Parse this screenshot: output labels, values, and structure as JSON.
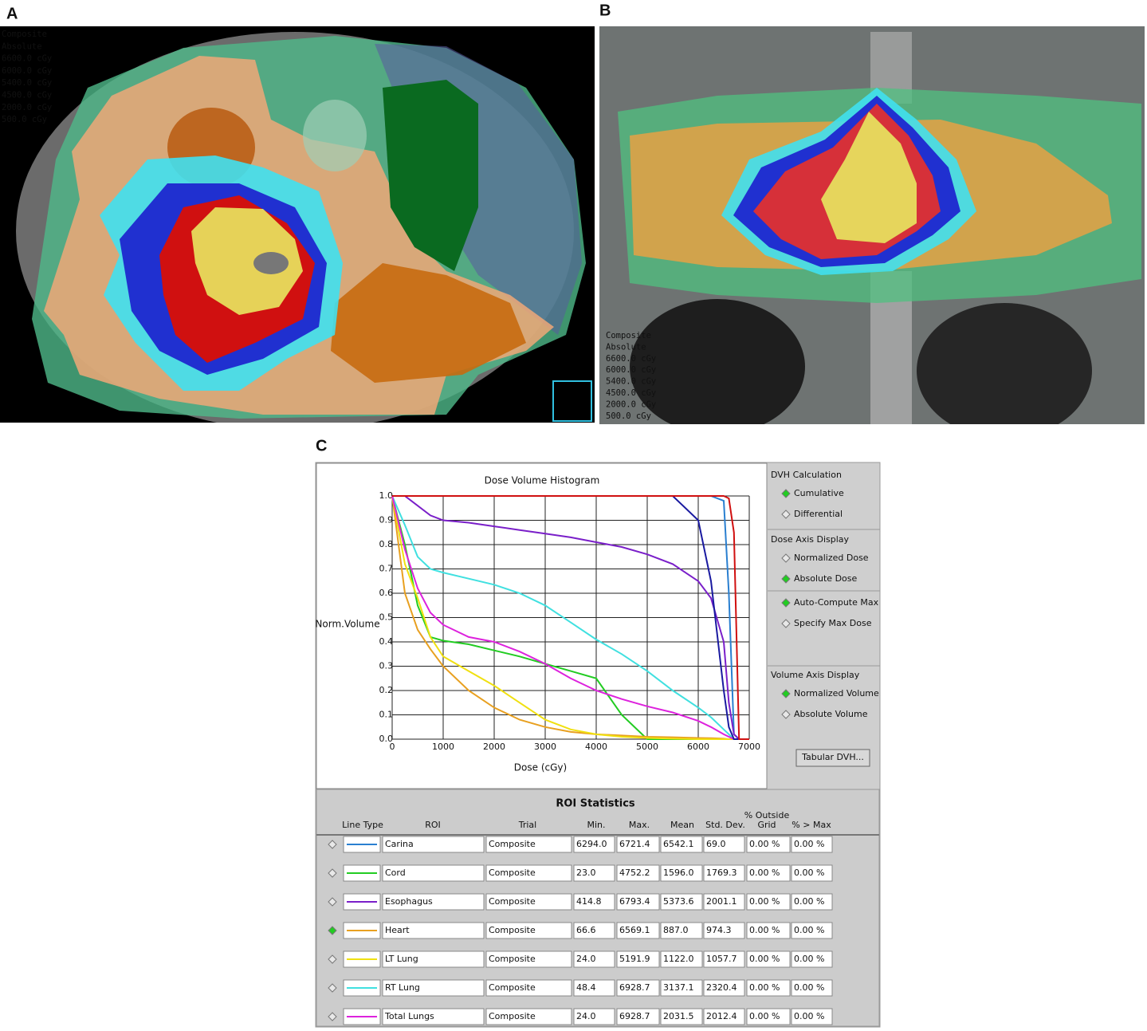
{
  "panel_labels": [
    "A",
    "B",
    "C"
  ],
  "image_a": {
    "legend": [
      {
        "text": "Composite",
        "color": "#ffffff"
      },
      {
        "text": "Absolute",
        "color": "#ffffff"
      },
      {
        "text": "6600.0 cGy",
        "color": "#f0f060"
      },
      {
        "text": "6000.0 cGy",
        "color": "#ff2020"
      },
      {
        "text": "5400.0 cGy",
        "color": "#3050ff"
      },
      {
        "text": "4500.0 cGy",
        "color": "#40e0f0"
      },
      {
        "text": "2000.0 cGy",
        "color": "#f09050"
      },
      {
        "text": "500.0 cGy",
        "color": "#40a060"
      }
    ]
  },
  "image_b": {
    "legend": [
      {
        "text": "Composite",
        "color": "#ffffff"
      },
      {
        "text": "Absolute",
        "color": "#ffffff"
      },
      {
        "text": "6600.0 cGy",
        "color": "#f0f060"
      },
      {
        "text": "6000.0 cGy",
        "color": "#ff2020"
      },
      {
        "text": "5400.0 cGy",
        "color": "#3050ff"
      },
      {
        "text": "4500.0 cGy",
        "color": "#40e0f0"
      },
      {
        "text": "2000.0 cGy",
        "color": "#f09050"
      },
      {
        "text": "500.0 cGy",
        "color": "#40a060"
      }
    ]
  },
  "chart_data": {
    "type": "line",
    "title": "Dose Volume Histogram",
    "x_label": "Dose (cGy)",
    "y_label": "Norm.Volume",
    "x": [
      0,
      250,
      500,
      750,
      1000,
      1500,
      2000,
      2500,
      3000,
      3500,
      4000,
      4500,
      5000,
      5500,
      6000,
      6250,
      6500,
      6600,
      6700,
      6800,
      7000
    ],
    "xlim": [
      0,
      7000
    ],
    "xticks": [
      0,
      1000,
      2000,
      3000,
      4000,
      5000,
      6000,
      7000
    ],
    "ylim": [
      0,
      1
    ],
    "yticks": [
      {
        "value": 0,
        "label": "0.0"
      },
      0.1,
      0.2,
      0.3,
      0.4,
      0.5,
      0.6,
      0.7,
      0.8,
      0.9,
      {
        "value": 1,
        "label": "1.0"
      }
    ],
    "grid": true,
    "series": [
      {
        "color": "#2a7fd0",
        "values": [
          1,
          1,
          1,
          1,
          1,
          1,
          1,
          1,
          1,
          1,
          1,
          1,
          1,
          1,
          1,
          1,
          0.98,
          0.6,
          0.02,
          0,
          0
        ]
      },
      {
        "color": "#22cc22",
        "values": [
          1,
          0.8,
          0.55,
          0.42,
          0.405,
          0.39,
          0.365,
          0.34,
          0.31,
          0.28,
          0.25,
          0.1,
          0,
          0,
          0,
          0,
          0,
          0,
          0,
          0,
          0
        ]
      },
      {
        "color": "#7a1fc9",
        "values": [
          1,
          1,
          0.96,
          0.92,
          0.9,
          0.89,
          0.875,
          0.86,
          0.845,
          0.83,
          0.81,
          0.79,
          0.76,
          0.72,
          0.65,
          0.58,
          0.4,
          0.15,
          0.02,
          0,
          0
        ]
      },
      {
        "color": "#e8a020",
        "values": [
          1,
          0.6,
          0.45,
          0.37,
          0.3,
          0.2,
          0.13,
          0.08,
          0.05,
          0.03,
          0.02,
          0.015,
          0.01,
          0.008,
          0.005,
          0.004,
          0.002,
          0,
          0,
          0,
          0
        ]
      },
      {
        "color": "#f0e010",
        "values": [
          1,
          0.72,
          0.58,
          0.42,
          0.34,
          0.28,
          0.22,
          0.15,
          0.08,
          0.04,
          0.02,
          0.01,
          0.005,
          0.002,
          0,
          0,
          0,
          0,
          0,
          0,
          0
        ]
      },
      {
        "color": "#40e0e0",
        "values": [
          1,
          0.88,
          0.75,
          0.7,
          0.685,
          0.66,
          0.635,
          0.6,
          0.55,
          0.48,
          0.41,
          0.35,
          0.28,
          0.2,
          0.13,
          0.09,
          0.04,
          0.02,
          0,
          0,
          0
        ]
      },
      {
        "color": "#dd22dd",
        "values": [
          1,
          0.78,
          0.62,
          0.52,
          0.47,
          0.42,
          0.4,
          0.36,
          0.31,
          0.25,
          0.2,
          0.165,
          0.135,
          0.11,
          0.075,
          0.05,
          0.02,
          0.01,
          0,
          0,
          0
        ]
      },
      {
        "color": "#1a1aa0",
        "values": [
          1,
          1,
          1,
          1,
          1,
          1,
          1,
          1,
          1,
          1,
          1,
          1,
          1,
          1,
          0.9,
          0.65,
          0.2,
          0.05,
          0,
          0,
          0
        ]
      },
      {
        "color": "#d01010",
        "values": [
          1,
          1,
          1,
          1,
          1,
          1,
          1,
          1,
          1,
          1,
          1,
          1,
          1,
          1,
          1,
          1,
          1,
          0.99,
          0.85,
          0,
          0
        ]
      }
    ]
  },
  "controls": {
    "sections": [
      {
        "title": "DVH Calculation",
        "options": [
          {
            "label": "Cumulative",
            "selected": true
          },
          {
            "label": "Differential",
            "selected": false
          }
        ]
      },
      {
        "title": "Dose Axis Display",
        "options": [
          {
            "label": "Normalized Dose",
            "selected": false
          },
          {
            "label": "Absolute Dose",
            "selected": true
          },
          {
            "label": "Auto-Compute Max",
            "selected": true
          },
          {
            "label": "Specify Max Dose",
            "selected": false
          }
        ]
      },
      {
        "title": "Volume Axis Display",
        "options": [
          {
            "label": "Normalized Volume",
            "selected": true
          },
          {
            "label": "Absolute Volume",
            "selected": false
          }
        ]
      }
    ],
    "button": "Tabular DVH..."
  },
  "roi_statistics": {
    "title": "ROI Statistics",
    "headers": [
      "Line Type",
      "ROI",
      "Trial",
      "Min.",
      "Max.",
      "Mean",
      "Std. Dev.",
      "% Outside Grid",
      "% > Max"
    ],
    "rows": [
      {
        "selected": false,
        "color": "#2a7fd0",
        "roi": "Carina",
        "trial": "Composite",
        "min": "6294.0",
        "max": "6721.4",
        "mean": "6542.1",
        "std": "69.0",
        "outside": "0.00 %",
        "over_max": "0.00 %"
      },
      {
        "selected": false,
        "color": "#22cc22",
        "roi": "Cord",
        "trial": "Composite",
        "min": "23.0",
        "max": "4752.2",
        "mean": "1596.0",
        "std": "1769.3",
        "outside": "0.00 %",
        "over_max": "0.00 %"
      },
      {
        "selected": false,
        "color": "#7a1fc9",
        "roi": "Esophagus",
        "trial": "Composite",
        "min": "414.8",
        "max": "6793.4",
        "mean": "5373.6",
        "std": "2001.1",
        "outside": "0.00 %",
        "over_max": "0.00 %"
      },
      {
        "selected": true,
        "color": "#e8a020",
        "roi": "Heart",
        "trial": "Composite",
        "min": "66.6",
        "max": "6569.1",
        "mean": "887.0",
        "std": "974.3",
        "outside": "0.00 %",
        "over_max": "0.00 %"
      },
      {
        "selected": false,
        "color": "#f0e010",
        "roi": "LT Lung",
        "trial": "Composite",
        "min": "24.0",
        "max": "5191.9",
        "mean": "1122.0",
        "std": "1057.7",
        "outside": "0.00 %",
        "over_max": "0.00 %"
      },
      {
        "selected": false,
        "color": "#40e0e0",
        "roi": "RT Lung",
        "trial": "Composite",
        "min": "48.4",
        "max": "6928.7",
        "mean": "3137.1",
        "std": "2320.4",
        "outside": "0.00 %",
        "over_max": "0.00 %"
      },
      {
        "selected": false,
        "color": "#dd22dd",
        "roi": "Total Lungs",
        "trial": "Composite",
        "min": "24.0",
        "max": "6928.7",
        "mean": "2031.5",
        "std": "2012.4",
        "outside": "0.00 %",
        "over_max": "0.00 %"
      }
    ]
  }
}
